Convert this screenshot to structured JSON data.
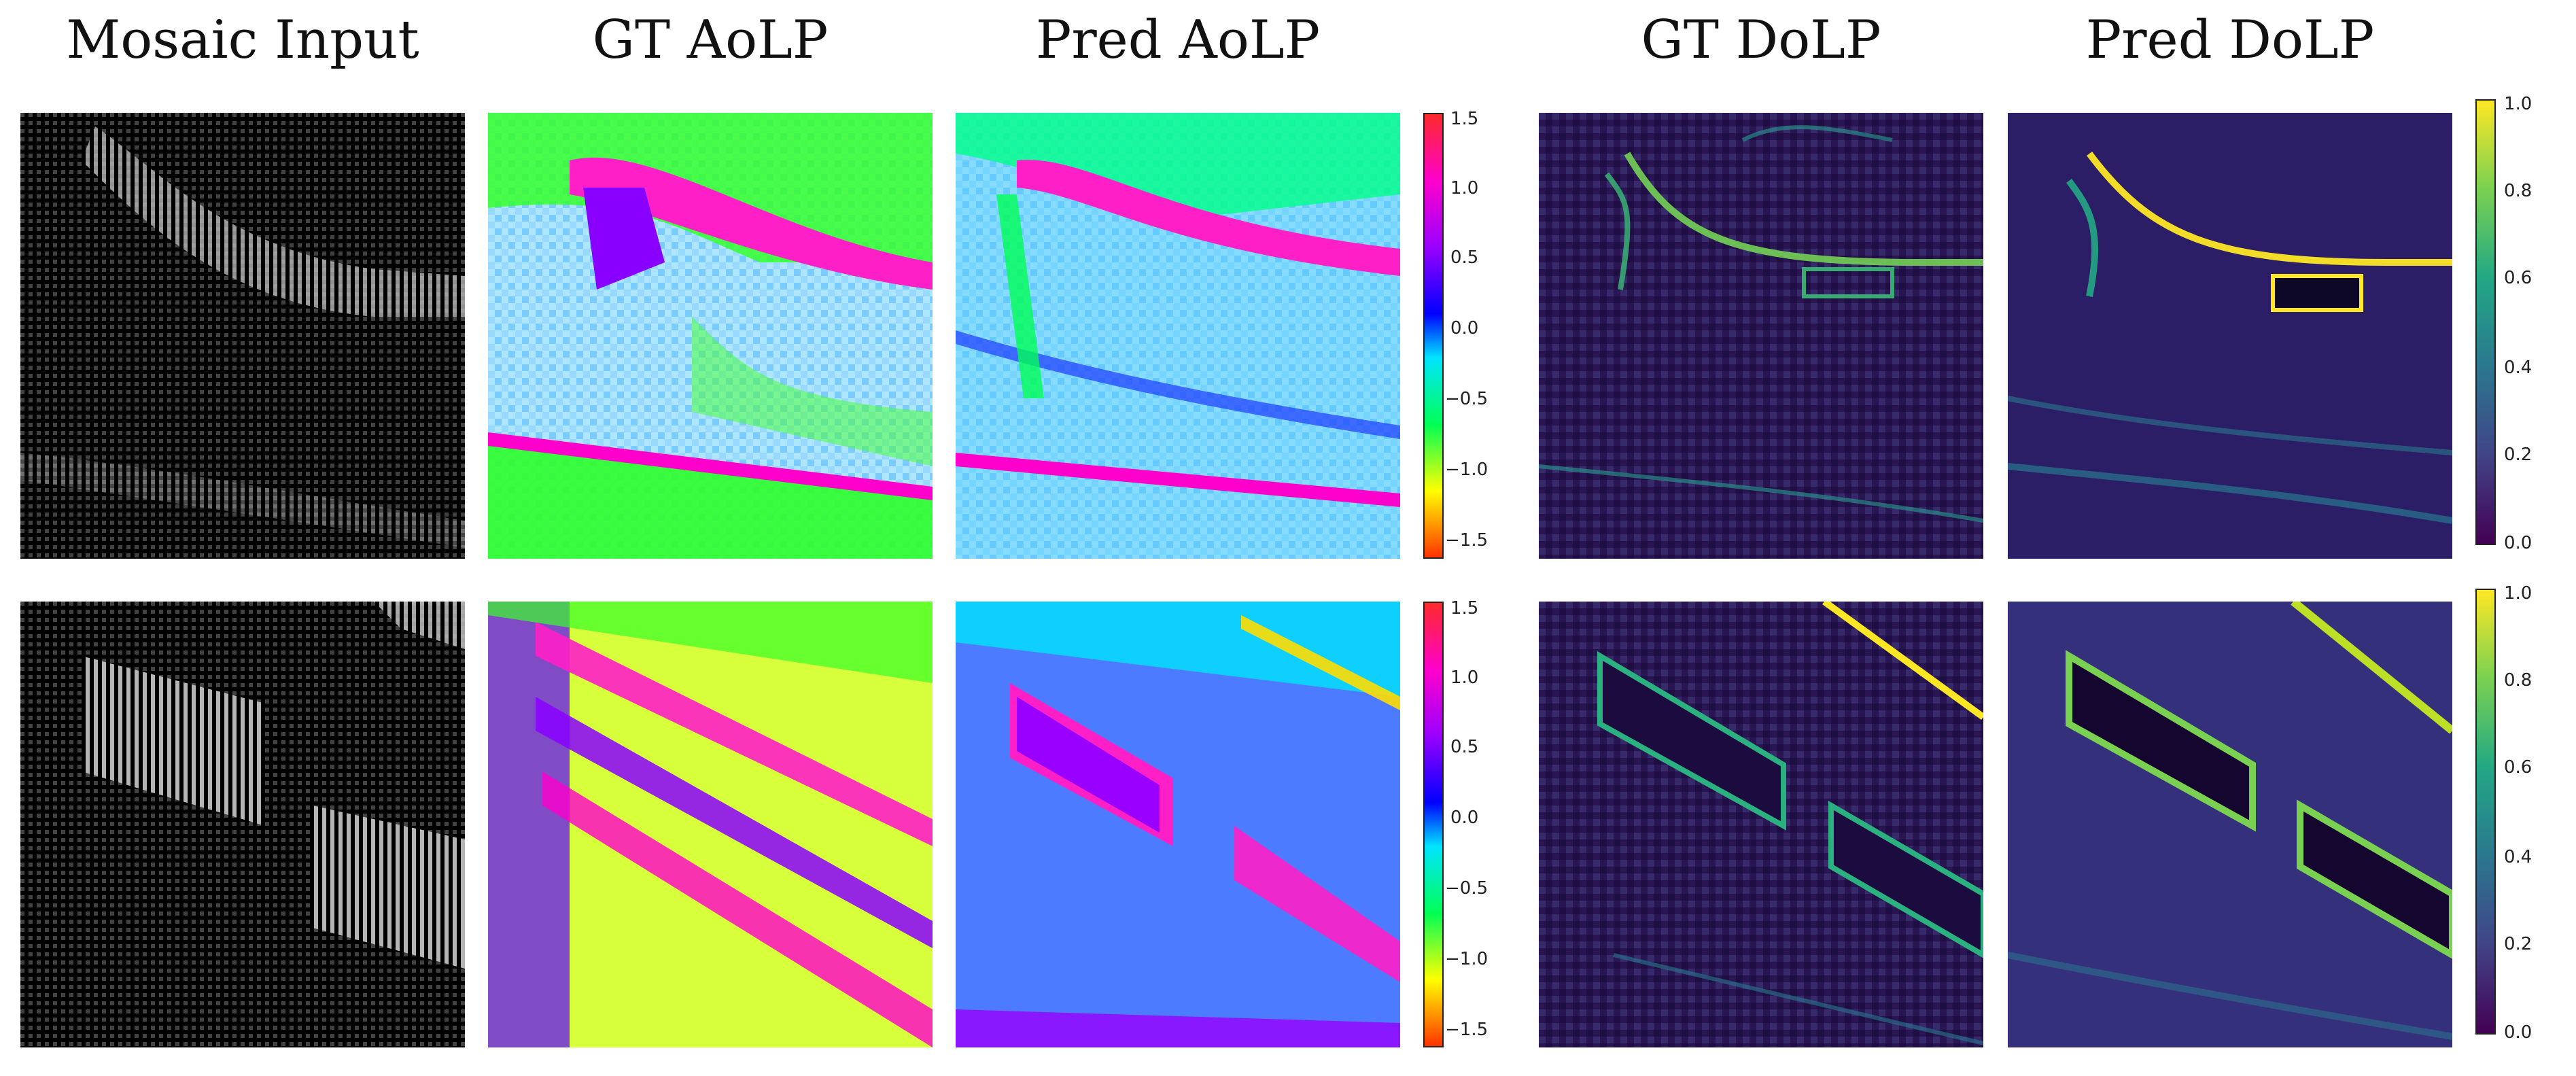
{
  "figure": {
    "column_titles": [
      "Mosaic Input",
      "GT AoLP",
      "Pred AoLP",
      "GT DoLP",
      "Pred DoLP"
    ],
    "aolp_colorbar": {
      "ticks": [
        "1.5",
        "1.0",
        "0.5",
        "0.0",
        "−0.5",
        "−1.0",
        "−1.5"
      ]
    },
    "dolp_colorbar": {
      "ticks": [
        "1.0",
        "0.8",
        "0.6",
        "0.4",
        "0.2",
        "0.0"
      ]
    },
    "rows": [
      {
        "id": "row-1",
        "panels": [
          "mosaic-input",
          "gt-aolp",
          "pred-aolp",
          "gt-dolp",
          "pred-dolp"
        ]
      },
      {
        "id": "row-2",
        "panels": [
          "mosaic-input",
          "gt-aolp",
          "pred-aolp",
          "gt-dolp",
          "pred-dolp"
        ]
      }
    ]
  }
}
